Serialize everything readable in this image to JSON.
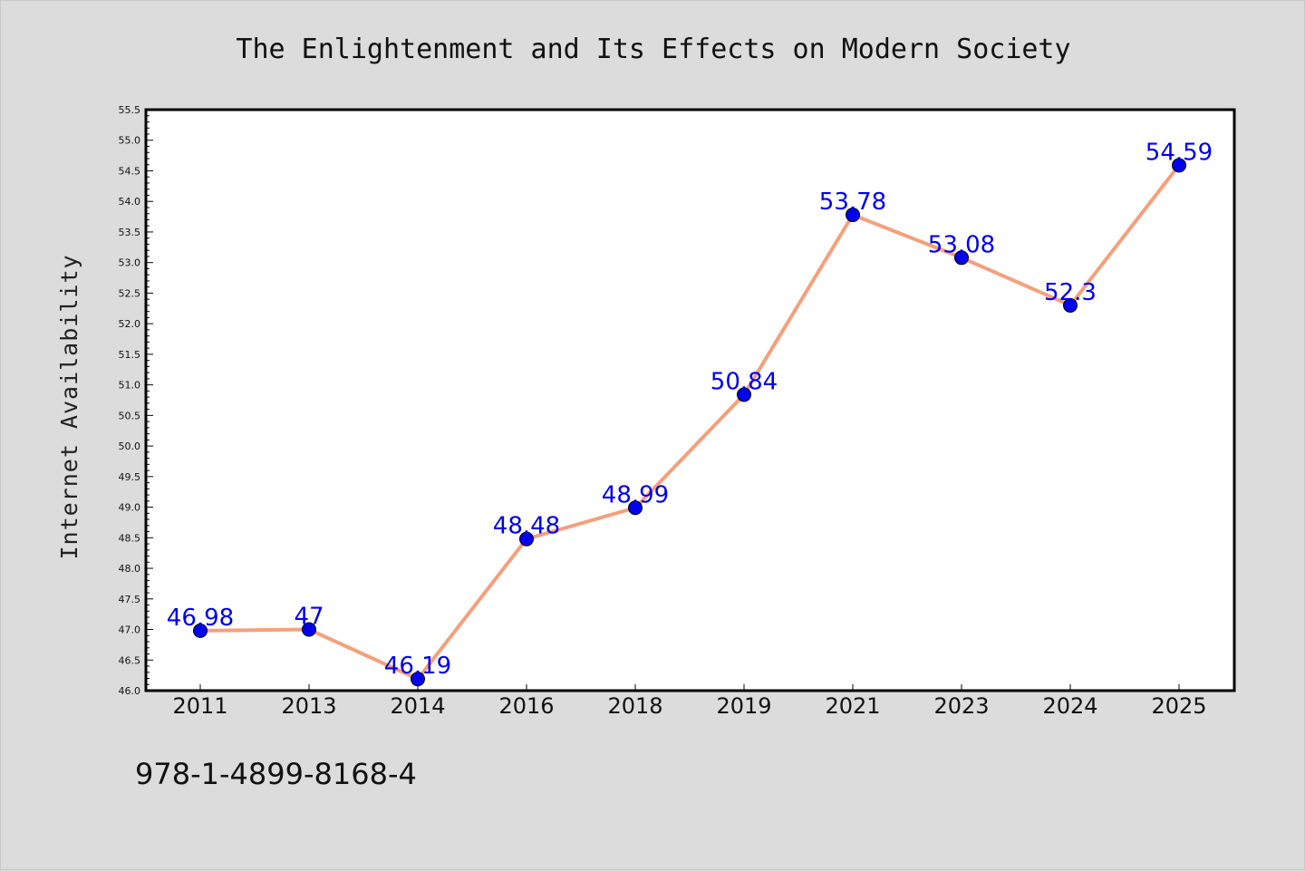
{
  "chart_data": {
    "type": "line",
    "title": "The Enlightenment and Its Effects on Modern Society",
    "xlabel": "",
    "ylabel": "Internet Availability",
    "categories": [
      "2011",
      "2013",
      "2014",
      "2016",
      "2018",
      "2019",
      "2021",
      "2023",
      "2024",
      "2025"
    ],
    "series": [
      {
        "values": [
          46.98,
          47,
          46.19,
          48.48,
          48.99,
          50.84,
          53.78,
          53.08,
          52.3,
          54.59
        ],
        "data_labels": [
          "46.98",
          "47",
          "46.19",
          "48.48",
          "48.99",
          "50.84",
          "53.78",
          "53.08",
          "52.3",
          "54.59"
        ]
      }
    ],
    "ylim": [
      46.0,
      55.5
    ],
    "yticks": [
      "46.0",
      "46.5",
      "47.0",
      "47.5",
      "48.0",
      "48.5",
      "49.0",
      "49.5",
      "50.0",
      "50.5",
      "51.0",
      "51.5",
      "52.0",
      "52.5",
      "53.0",
      "53.5",
      "54.0",
      "54.5",
      "55.0",
      "55.5"
    ],
    "grid": false,
    "legend": "none",
    "colors": {
      "line": "#f4a07c",
      "marker": "#0000ee",
      "data_label": "#0000ee",
      "plot_background": "#ffffff",
      "figure_background": "#dcdcdc"
    }
  },
  "footer": {
    "isbn": "978-1-4899-8168-4"
  }
}
